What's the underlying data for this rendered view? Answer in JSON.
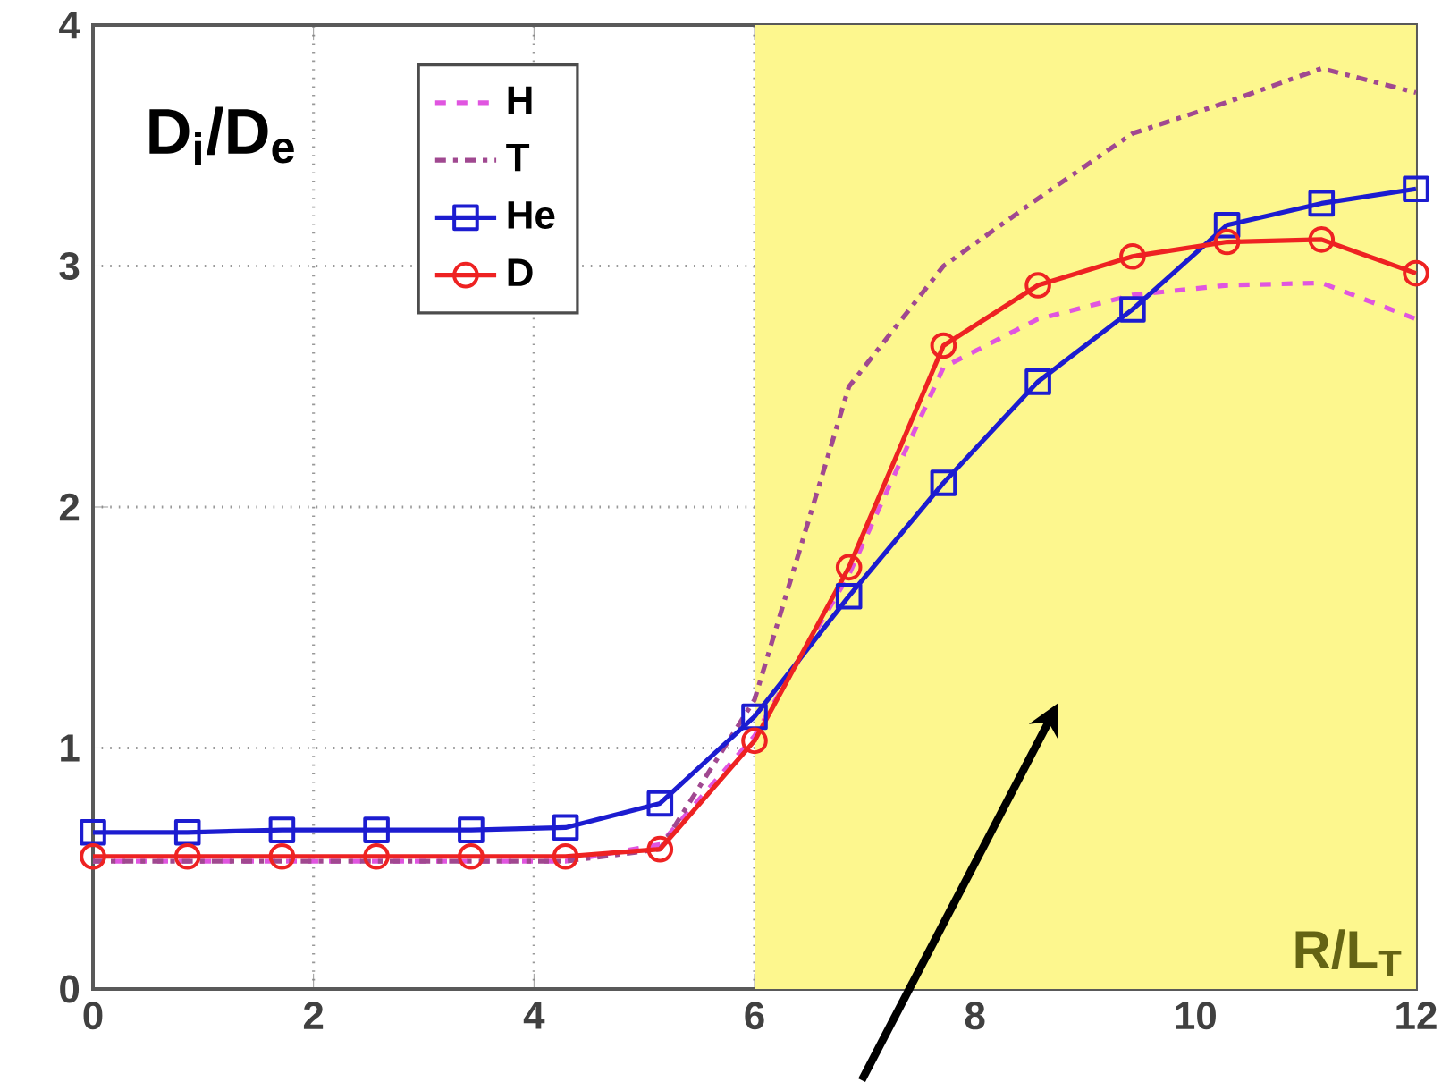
{
  "chart_data": {
    "type": "line",
    "ylabel": "D$_{i}$/D$_{e}$",
    "x": [
      0,
      0.857,
      1.714,
      2.571,
      3.429,
      4.286,
      5.143,
      6,
      6.857,
      7.714,
      8.571,
      9.429,
      10.286,
      11.143,
      12
    ],
    "series": [
      {
        "name": "H",
        "color": "#e055e0",
        "line_style": "dashed",
        "marker": "none",
        "values": [
          0.53,
          0.53,
          0.53,
          0.53,
          0.53,
          0.53,
          0.6,
          1.05,
          1.72,
          2.58,
          2.78,
          2.88,
          2.92,
          2.93,
          2.78
        ]
      },
      {
        "name": "T",
        "color": "#a04890",
        "line_style": "dashdot",
        "marker": "none",
        "values": [
          0.53,
          0.53,
          0.53,
          0.53,
          0.53,
          0.53,
          0.58,
          1.2,
          2.5,
          3.0,
          3.28,
          3.55,
          3.68,
          3.82,
          3.72
        ]
      },
      {
        "name": "He",
        "color": "#1c1cd0",
        "line_style": "solid",
        "marker": "square",
        "values": [
          0.65,
          0.65,
          0.66,
          0.66,
          0.66,
          0.67,
          0.77,
          1.13,
          1.63,
          2.1,
          2.52,
          2.82,
          3.17,
          3.26,
          3.32
        ]
      },
      {
        "name": "D",
        "color": "#ee2222",
        "line_style": "solid",
        "marker": "circle",
        "values": [
          0.55,
          0.55,
          0.55,
          0.55,
          0.55,
          0.55,
          0.58,
          1.03,
          1.75,
          2.67,
          2.92,
          3.04,
          3.1,
          3.11,
          2.97
        ]
      }
    ],
    "bands": [
      {
        "axis": "x",
        "from": 6,
        "to": 12,
        "label": "R/L$_{T}$",
        "color": "#fdf78e"
      }
    ],
    "xlim": [
      0,
      12
    ],
    "ylim": [
      0,
      4
    ],
    "xticks": [
      0,
      2,
      4,
      6,
      8,
      10,
      12
    ],
    "yticks": [
      0,
      1,
      2,
      3,
      4
    ],
    "grid": true,
    "legend": "top left"
  }
}
